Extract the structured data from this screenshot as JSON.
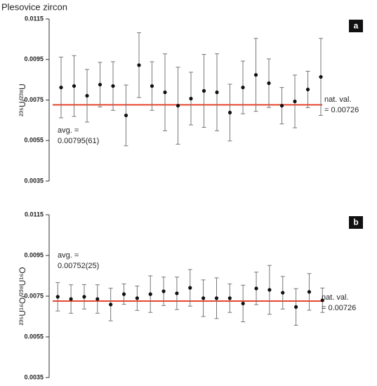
{
  "title": "Plesovice zircon",
  "chart_data": [
    {
      "type": "scatter",
      "panel": "a",
      "ylabel": "²³⁵U/²³⁸U",
      "x": [
        1,
        2,
        3,
        4,
        5,
        6,
        7,
        8,
        9,
        10,
        11,
        12,
        13,
        14,
        15,
        16,
        17,
        18,
        19,
        20,
        21
      ],
      "values": [
        0.00812,
        0.00819,
        0.00771,
        0.00826,
        0.00819,
        0.00674,
        0.00922,
        0.00819,
        0.00788,
        0.00722,
        0.00757,
        0.00795,
        0.00788,
        0.00688,
        0.00812,
        0.00874,
        0.00833,
        0.00722,
        0.00743,
        0.00802,
        0.00864
      ],
      "errors": [
        0.0015,
        0.0015,
        0.0013,
        0.0011,
        0.0012,
        0.0015,
        0.0016,
        0.0012,
        0.0019,
        0.0019,
        0.0013,
        0.0018,
        0.0019,
        0.0014,
        0.0013,
        0.0018,
        0.0012,
        0.0009,
        0.0013,
        0.0009,
        0.0019
      ],
      "color": "#111111",
      "xlim": [
        0.08,
        23
      ],
      "ylim": [
        0.0035,
        0.0115
      ],
      "yticks": [
        0.0035,
        0.0055,
        0.0075,
        0.0095,
        0.0115
      ],
      "reference_line": {
        "value": 0.00726,
        "color": "#e8452c",
        "label": [
          "nat. val.",
          "= 0.00726"
        ]
      },
      "annotation": [
        "avg. =",
        "0.00795(61)"
      ]
    },
    {
      "type": "scatter",
      "panel": "b",
      "ylabel": "²³⁵U¹⁶O/²³⁸U¹⁶O",
      "x": [
        1,
        2,
        3,
        4,
        5,
        6,
        7,
        8,
        9,
        10,
        11,
        12,
        13,
        14,
        15,
        16,
        17,
        18,
        19,
        20,
        21
      ],
      "values": [
        0.00747,
        0.00736,
        0.00747,
        0.00736,
        0.00709,
        0.0076,
        0.0074,
        0.0076,
        0.00774,
        0.00764,
        0.00791,
        0.0074,
        0.0074,
        0.0074,
        0.00714,
        0.00788,
        0.00781,
        0.00767,
        0.00697,
        0.00771,
        0.0073
      ],
      "errors": [
        0.0007,
        0.0007,
        0.0006,
        0.0007,
        0.0008,
        0.0005,
        0.0006,
        0.0009,
        0.0007,
        0.0008,
        0.0009,
        0.0009,
        0.001,
        0.0007,
        0.0009,
        0.0008,
        0.0012,
        0.0008,
        0.0009,
        0.0009,
        0.0006
      ],
      "color": "#111111",
      "xlim": [
        0.35,
        23
      ],
      "ylim": [
        0.0035,
        0.0115
      ],
      "yticks": [
        0.0035,
        0.0055,
        0.0075,
        0.0095,
        0.0115
      ],
      "reference_line": {
        "value": 0.00726,
        "color": "#e8452c",
        "label": [
          "nat. val.",
          "= 0.00726"
        ]
      },
      "annotation": [
        "avg. =",
        "0.00752(25)"
      ]
    }
  ]
}
